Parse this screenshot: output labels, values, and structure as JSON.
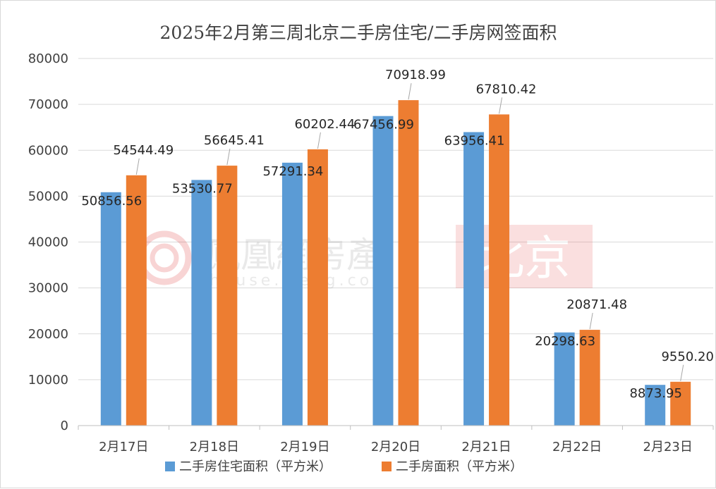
{
  "chart_data": {
    "type": "bar",
    "title": "2025年2月第三周北京二手房住宅/二手房网签面积",
    "categories": [
      "2月17日",
      "2月18日",
      "2月19日",
      "2月20日",
      "2月21日",
      "2月22日",
      "2月23日"
    ],
    "series": [
      {
        "name": "二手房住宅面积（平方米）",
        "color": "#5b9bd5",
        "values": [
          50856.56,
          53530.77,
          57291.34,
          67456.99,
          63956.41,
          20298.63,
          8873.95
        ],
        "labels": [
          "50856.56",
          "53530.77",
          "57291.34",
          "67456.99",
          "63956.41",
          "20298.63",
          "8873.95"
        ]
      },
      {
        "name": "二手房面积（平方米）",
        "color": "#ed7d31",
        "values": [
          54544.49,
          56645.41,
          60202.44,
          70918.99,
          67810.42,
          20871.48,
          9550.2
        ],
        "labels": [
          "54544.49",
          "56645.41",
          "60202.44",
          "70918.99",
          "67810.42",
          "20871.48",
          "9550.20"
        ]
      }
    ],
    "ylim": [
      0,
      80000
    ],
    "yticks": [
      0,
      10000,
      20000,
      30000,
      40000,
      50000,
      60000,
      70000,
      80000
    ],
    "xlabel": "",
    "ylabel": "",
    "grid": true,
    "legend": "bottom"
  },
  "watermark": {
    "brand": "鳳凰網房產",
    "url": "house.ifeng.com",
    "city": "北京"
  }
}
